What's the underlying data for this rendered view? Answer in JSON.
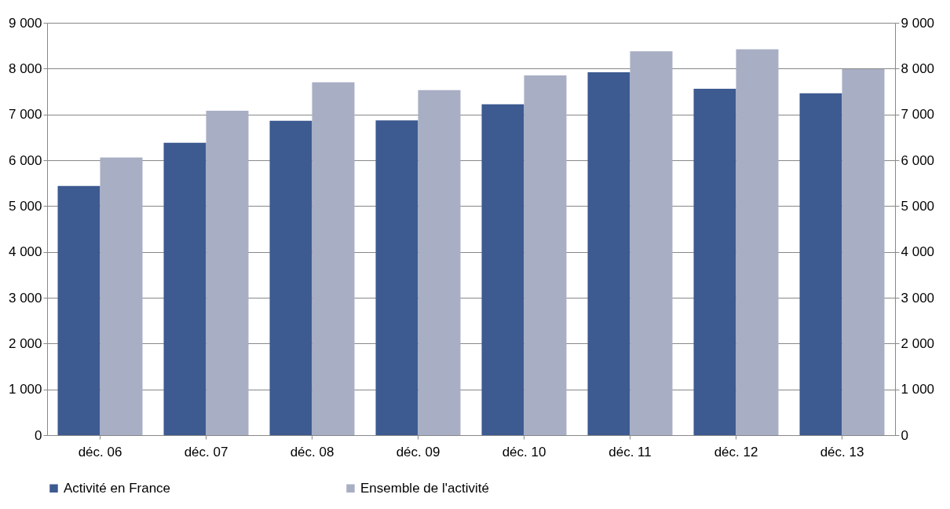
{
  "chart_data": {
    "type": "bar",
    "categories": [
      "déc. 06",
      "déc. 07",
      "déc. 08",
      "déc. 09",
      "déc. 10",
      "déc. 11",
      "déc. 12",
      "déc. 13"
    ],
    "series": [
      {
        "name": "Activité en France",
        "color": "#3d5a91",
        "values": [
          5440,
          6380,
          6860,
          6870,
          7220,
          7920,
          7560,
          7460
        ]
      },
      {
        "name": "Ensemble de l'activité",
        "color": "#a8aec4",
        "values": [
          6060,
          7080,
          7700,
          7530,
          7850,
          8380,
          8420,
          7990
        ]
      }
    ],
    "ylim": [
      0,
      9000
    ],
    "yticks": [
      {
        "value": 0,
        "label": "0"
      },
      {
        "value": 1000,
        "label": "1 000"
      },
      {
        "value": 2000,
        "label": "2 000"
      },
      {
        "value": 3000,
        "label": "3 000"
      },
      {
        "value": 4000,
        "label": "4 000"
      },
      {
        "value": 5000,
        "label": "5 000"
      },
      {
        "value": 6000,
        "label": "6 000"
      },
      {
        "value": 7000,
        "label": "7 000"
      },
      {
        "value": 8000,
        "label": "8 000"
      },
      {
        "value": 9000,
        "label": "9 000"
      }
    ],
    "y2lim": [
      0,
      9000
    ],
    "y2ticks": [
      {
        "value": 0,
        "label": "0"
      },
      {
        "value": 1000,
        "label": "1 000"
      },
      {
        "value": 2000,
        "label": "2 000"
      },
      {
        "value": 3000,
        "label": "3 000"
      },
      {
        "value": 4000,
        "label": "4 000"
      },
      {
        "value": 5000,
        "label": "5 000"
      },
      {
        "value": 6000,
        "label": "6 000"
      },
      {
        "value": 7000,
        "label": "7 000"
      },
      {
        "value": 8000,
        "label": "8 000"
      },
      {
        "value": 9000,
        "label": "9 000"
      }
    ],
    "grid": "y",
    "legend": "bottom"
  }
}
